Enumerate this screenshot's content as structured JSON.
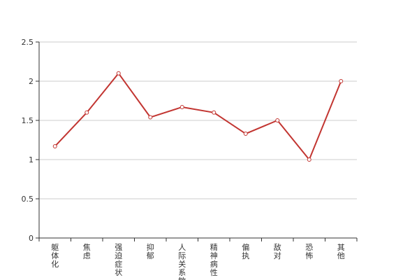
{
  "chart_data": {
    "type": "line",
    "title": "",
    "xlabel": "",
    "ylabel": "",
    "categories": [
      "躯体化",
      "焦虑",
      "强迫症状",
      "抑郁",
      "人际关系敏感",
      "精神病性",
      "偏执",
      "敌对",
      "恐怖",
      "其他"
    ],
    "series": [
      {
        "values": [
          1.17,
          1.6,
          2.1,
          1.54,
          1.67,
          1.6,
          1.33,
          1.5,
          1.0,
          2.0
        ]
      }
    ],
    "ylim": [
      0,
      2.5
    ],
    "yticks": [
      0,
      0.5,
      1,
      1.5,
      2,
      2.5
    ],
    "grid": true,
    "colors": {
      "line": "#c23531",
      "grid": "#cccccc",
      "axis": "#333333"
    }
  }
}
